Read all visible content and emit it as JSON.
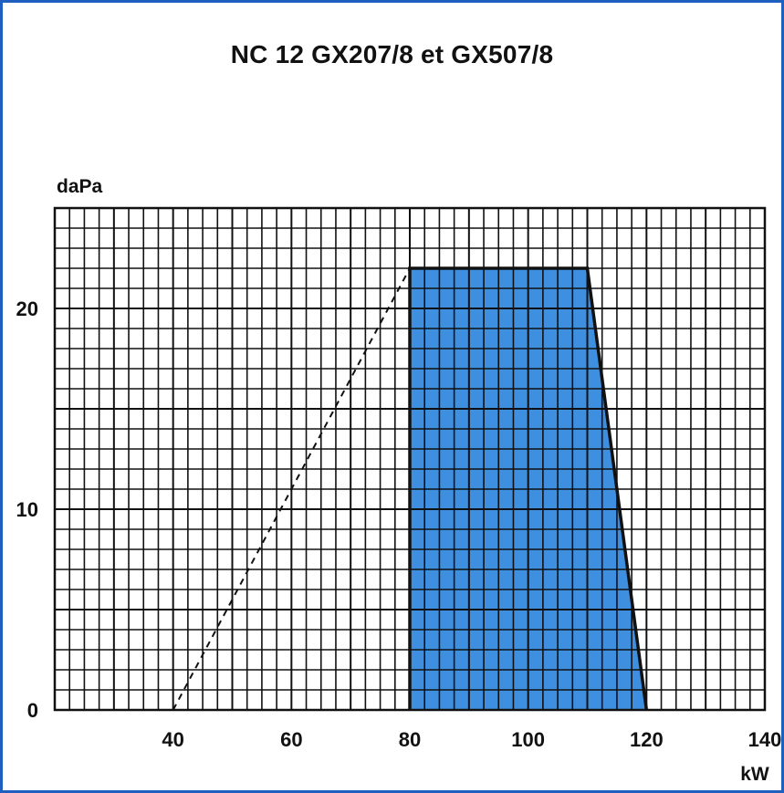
{
  "chart_data": {
    "type": "area",
    "title": "NC 12 GX207/8 et GX507/8",
    "ylabel": "daPa",
    "xlabel": "kW",
    "xlim": [
      20,
      140
    ],
    "ylim": [
      0,
      25
    ],
    "x_ticks": [
      "40",
      "60",
      "80",
      "100",
      "120",
      "140"
    ],
    "y_ticks": [
      "0",
      "10",
      "20"
    ],
    "grid": true,
    "working_area": {
      "x": [
        80,
        80,
        110,
        120
      ],
      "y": [
        0,
        22,
        22,
        0
      ]
    },
    "dashed_line": {
      "x": [
        40,
        80
      ],
      "y": [
        0,
        22
      ]
    },
    "colors": {
      "fill": "#3f8fe0",
      "grid": "#111111",
      "frame": "#1f5fbf"
    }
  }
}
